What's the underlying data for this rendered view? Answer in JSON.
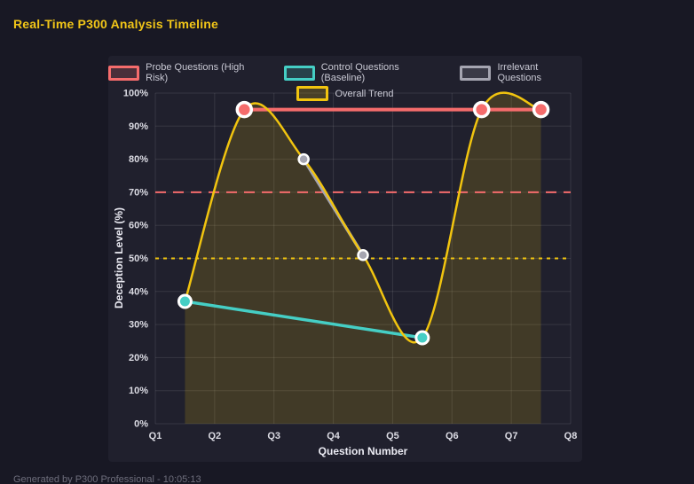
{
  "page": {
    "title": "Real-Time P300 Analysis Timeline",
    "footer": "Generated by P300 Professional - 10:05:13"
  },
  "colors": {
    "page_background": "#181824",
    "panel_background": "#20202d",
    "title": "#f2c618",
    "grid": "rgba(255,255,255,0.10)",
    "tick_text": "#dcdce4",
    "legend_text": "#c9c9d4"
  },
  "chart_data": {
    "type": "line",
    "title": "Real-Time P300 Analysis Timeline",
    "xlabel": "Question Number",
    "ylabel": "Deception Level (%)",
    "x_range": [
      1,
      8
    ],
    "ylim": [
      0,
      100
    ],
    "grid": true,
    "legend_position": "top",
    "x_tick_labels": [
      "Q1",
      "Q2",
      "Q3",
      "Q4",
      "Q5",
      "Q6",
      "Q7",
      "Q8"
    ],
    "y_tick_labels": [
      "0%",
      "10%",
      "20%",
      "30%",
      "40%",
      "50%",
      "60%",
      "70%",
      "80%",
      "90%",
      "100%"
    ],
    "series": [
      {
        "name": "Probe Questions (High Risk)",
        "color": "#f56c6c",
        "marker_border": "#ffffff",
        "points": [
          [
            2.5,
            95
          ],
          [
            6.5,
            95
          ],
          [
            7.5,
            95
          ]
        ]
      },
      {
        "name": "Control Questions (Baseline)",
        "color": "#45cec5",
        "marker_border": "#ffffff",
        "points": [
          [
            1.5,
            37
          ],
          [
            5.5,
            26
          ]
        ]
      },
      {
        "name": "Irrelevant Questions",
        "color": "#a5a5b1",
        "marker_border": "#ffffff",
        "points": [
          [
            3.5,
            80
          ],
          [
            4.5,
            51
          ]
        ]
      },
      {
        "name": "Overall Trend",
        "color": "#f1c40f",
        "fill_color": "rgba(241,196,15,0.16)",
        "smooth": true,
        "filled": true,
        "points": [
          [
            1.5,
            37
          ],
          [
            2.5,
            95
          ],
          [
            3.5,
            80
          ],
          [
            4.5,
            51
          ],
          [
            5.5,
            26
          ],
          [
            6.5,
            95
          ],
          [
            7.5,
            95
          ]
        ]
      }
    ],
    "thresholds": [
      {
        "value": 70,
        "color": "#f56c6c",
        "style": "dashed"
      },
      {
        "value": 50,
        "color": "#f1c40f",
        "style": "dotted"
      }
    ]
  }
}
